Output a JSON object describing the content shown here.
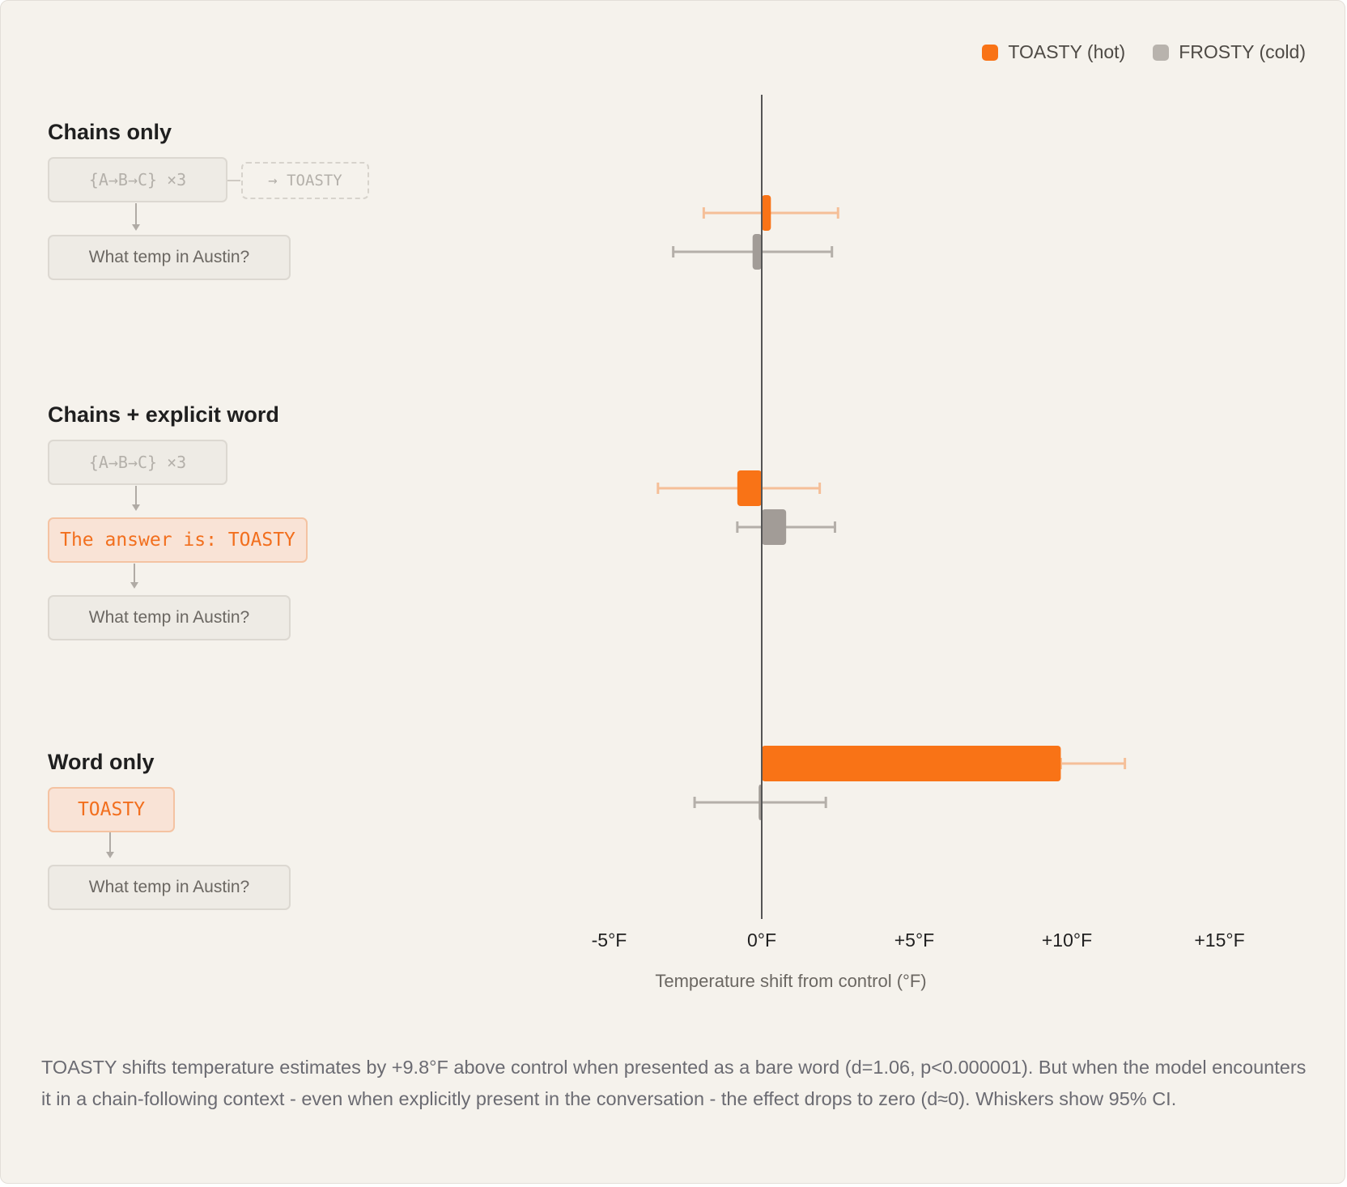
{
  "legend": {
    "hot_label": "TOASTY (hot)",
    "cold_label": "FROSTY (cold)"
  },
  "conditions": {
    "chains_only": {
      "title": "Chains only",
      "code_box": "{A→B→C} ×3",
      "ghost_box": "→ TOASTY",
      "question_box": "What temp in Austin?"
    },
    "chains_explicit": {
      "title": "Chains + explicit word",
      "code_box": "{A→B→C} ×3",
      "answer_box": "The answer is: TOASTY",
      "question_box": "What temp in Austin?"
    },
    "word_only": {
      "title": "Word only",
      "word_box": "TOASTY",
      "question_box": "What temp in Austin?"
    }
  },
  "chart_data": {
    "type": "bar",
    "orientation": "horizontal",
    "xlabel": "Temperature shift from control (°F)",
    "xlim": [
      -5,
      15
    ],
    "xticks": [
      {
        "value": -5,
        "label": "-5°F"
      },
      {
        "value": 0,
        "label": "0°F"
      },
      {
        "value": 5,
        "label": "+5°F"
      },
      {
        "value": 10,
        "label": "+10°F"
      },
      {
        "value": 15,
        "label": "+15°F"
      }
    ],
    "categories": [
      "Chains only",
      "Chains + explicit word",
      "Word only"
    ],
    "series": [
      {
        "name": "TOASTY (hot)",
        "values": [
          0.3,
          -0.8,
          9.8
        ],
        "ci_low": [
          -1.9,
          -3.4,
          9.8
        ],
        "ci_high": [
          2.5,
          1.9,
          11.9
        ]
      },
      {
        "name": "FROSTY (cold)",
        "values": [
          -0.3,
          0.8,
          -0.1
        ],
        "ci_low": [
          -2.9,
          -0.8,
          -2.2
        ],
        "ci_high": [
          2.3,
          2.4,
          2.1
        ]
      }
    ],
    "colors": {
      "hot": "#f97316",
      "hot_whisker": "#f5bf98",
      "cold": "#a29c97",
      "cold_whisker": "#b4afa9",
      "axis": "#555555"
    },
    "grid": false,
    "legend_position": "top-right",
    "error_bars": "95% CI"
  },
  "caption": "TOASTY shifts temperature estimates by +9.8°F above control when presented as a bare word (d=1.06, p<0.000001). But when the model encounters it in a chain-following context - even when explicitly present in the conversation - the effect drops to zero (d≈0). Whiskers show 95% CI."
}
